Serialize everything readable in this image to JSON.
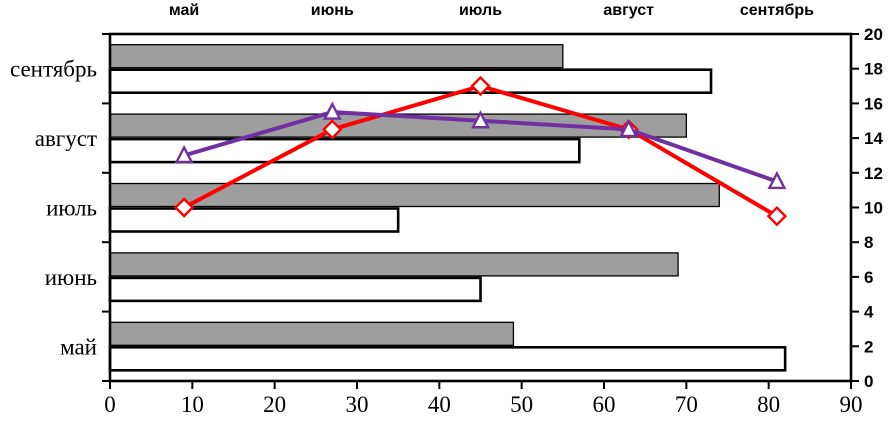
{
  "chart_data": {
    "type": "bar+line",
    "background": "#ffffff",
    "categories": [
      "май",
      "июнь",
      "июль",
      "август",
      "сентябрь"
    ],
    "top_axis_labels": [
      "май",
      "июнь",
      "июль",
      "август",
      "сентябрь"
    ],
    "bottom_axis": {
      "min": 0,
      "max": 90,
      "ticks": [
        0,
        10,
        20,
        30,
        40,
        50,
        60,
        70,
        80,
        90
      ]
    },
    "right_axis": {
      "min": 0,
      "max": 20,
      "ticks": [
        0,
        2,
        4,
        6,
        8,
        10,
        12,
        14,
        16,
        18,
        20
      ]
    },
    "bar_series": [
      {
        "name": "gray-bars",
        "color": "#9e9e9e",
        "border": "#000000",
        "values": [
          49,
          69,
          74,
          70,
          55
        ]
      },
      {
        "name": "white-bars",
        "color": "#ffffff",
        "border": "#000000",
        "values": [
          82,
          45,
          35,
          57,
          73
        ]
      }
    ],
    "line_series": [
      {
        "name": "red-diamond-line",
        "color": "#ff0000",
        "marker": "diamond",
        "x": [
          9,
          27,
          45,
          63,
          81
        ],
        "values": [
          10,
          14.5,
          17,
          14.5,
          9.5
        ]
      },
      {
        "name": "purple-triangle-line",
        "color": "#7030a0",
        "marker": "triangle",
        "x": [
          9,
          27,
          45,
          63,
          81
        ],
        "values": [
          13,
          15.5,
          15,
          14.5,
          11.5
        ]
      }
    ],
    "grid": "off",
    "legend_position": "none"
  }
}
